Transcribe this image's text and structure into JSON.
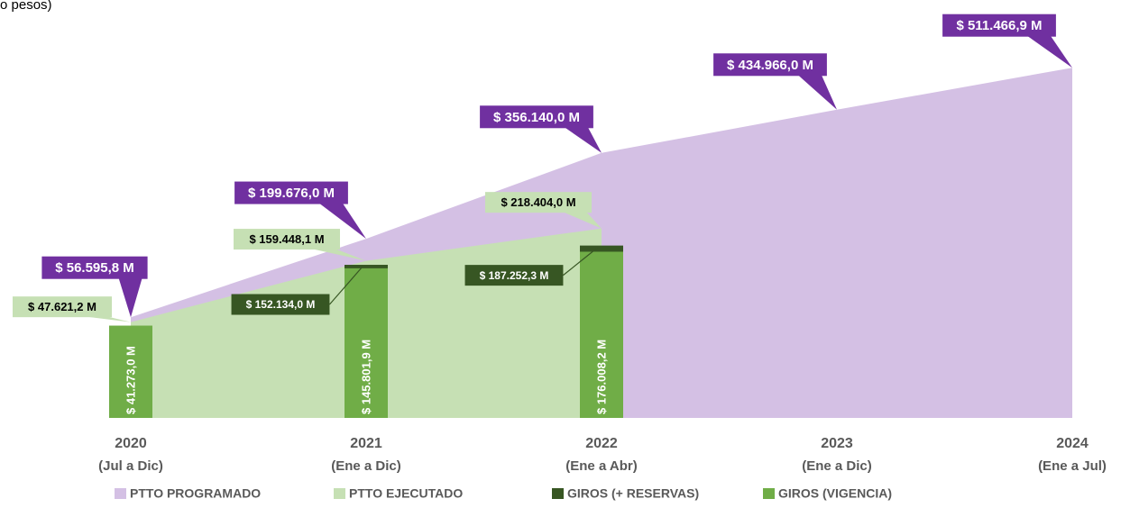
{
  "chart_data": {
    "type": "area-bar",
    "subtitle": "o pesos)",
    "categories": [
      "2020",
      "2021",
      "2022",
      "2023",
      "2024"
    ],
    "category_periods": [
      "(Jul a Dic)",
      "(Ene a Dic)",
      "(Ene a Abr)",
      "(Ene a Dic)",
      "(Ene a Jul)"
    ],
    "ylim": [
      -127000,
      520000
    ],
    "series": [
      {
        "name": "PTTO PROGRAMADO",
        "type": "area",
        "color": "#d4c0e4",
        "label_color": "#7030a0",
        "label_text_color": "#ffffff",
        "values": [
          56595.8,
          199676.0,
          356140.0,
          434966.0,
          511466.9
        ],
        "value_labels": [
          "$ 56.595,8 M",
          "$ 199.676,0 M",
          "$ 356.140,0 M",
          "$ 434.966,0 M",
          "$ 511.466,9 M"
        ]
      },
      {
        "name": "PTTO EJECUTADO",
        "type": "area",
        "color": "#c6e0b4",
        "label_color": "#c6e0b4",
        "label_text_color": "#000000",
        "values": [
          47621.2,
          159448.1,
          218404.0,
          null,
          null
        ],
        "value_labels": [
          "$ 47.621,2 M",
          "$ 159.448,1 M",
          "$ 218.404,0 M",
          null,
          null
        ]
      },
      {
        "name": "GIROS (+ RESERVAS)",
        "type": "bar",
        "color": "#375623",
        "label_color": "#375623",
        "label_text_color": "#ffffff",
        "values": [
          null,
          152134.0,
          187252.3,
          null,
          null
        ],
        "value_labels": [
          null,
          "$ 152.134,0 M",
          "$ 187.252,3 M",
          null,
          null
        ]
      },
      {
        "name": "GIROS (VIGENCIA)",
        "type": "bar",
        "color": "#70ad47",
        "label_text_color": "#ffffff",
        "values": [
          41273.0,
          145801.9,
          176008.2,
          null,
          null
        ],
        "value_labels": [
          "$ 41.273,0 M",
          "$ 145.801,9 M",
          "$ 176.008,2 M",
          null,
          null
        ]
      }
    ]
  }
}
